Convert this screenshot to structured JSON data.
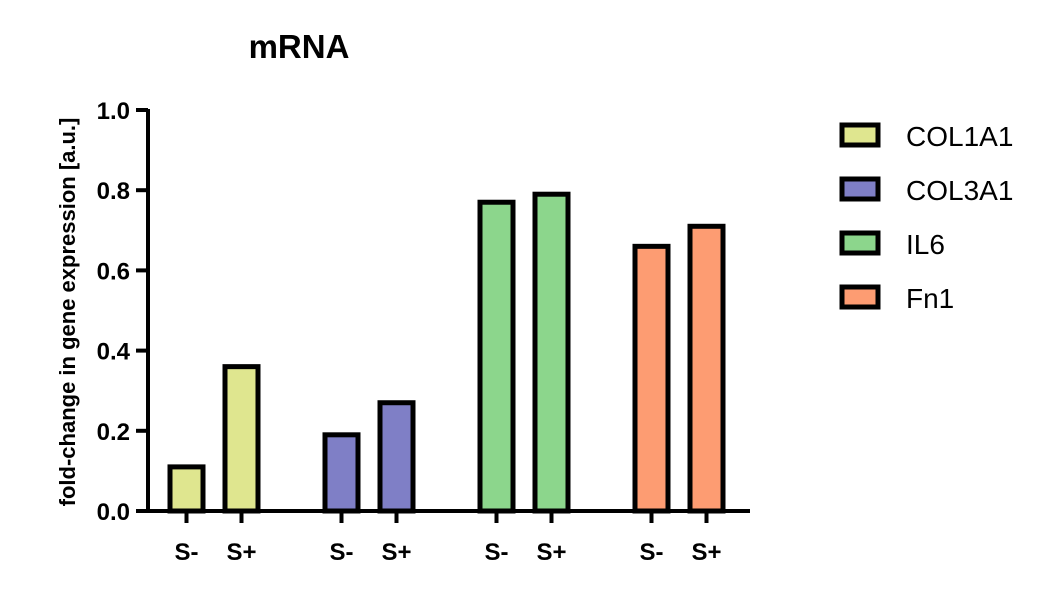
{
  "chart_data": {
    "type": "bar",
    "title": "mRNA",
    "xlabel": "",
    "ylabel": "fold-change in gene expression [a.u.]",
    "ylim": [
      0,
      1.0
    ],
    "yticks": [
      "0.0",
      "0.2",
      "0.4",
      "0.6",
      "0.8",
      "1.0"
    ],
    "grid": false,
    "legend_position": "right",
    "groups": [
      {
        "name": "COL1A1",
        "color": "#dfe68f",
        "categories": [
          "S-",
          "S+"
        ],
        "values": [
          0.11,
          0.36
        ]
      },
      {
        "name": "COL3A1",
        "color": "#7f7fc6",
        "categories": [
          "S-",
          "S+"
        ],
        "values": [
          0.19,
          0.27
        ]
      },
      {
        "name": "IL6",
        "color": "#8cd68c",
        "categories": [
          "S-",
          "S+"
        ],
        "values": [
          0.77,
          0.79
        ]
      },
      {
        "name": "Fn1",
        "color": "#fd9c72",
        "categories": [
          "S-",
          "S+"
        ],
        "values": [
          0.66,
          0.71
        ]
      }
    ]
  }
}
